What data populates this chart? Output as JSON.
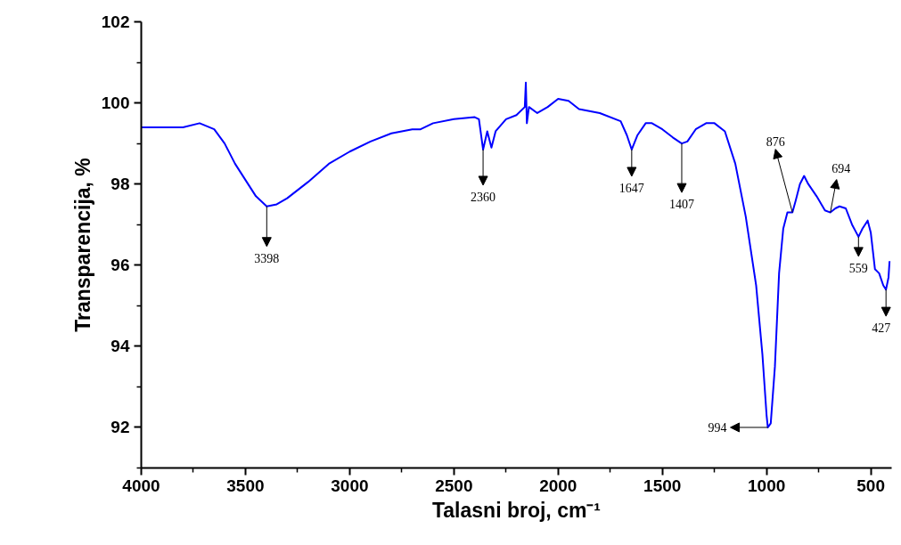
{
  "chart_data": {
    "type": "line",
    "xlabel": "Talasni broj, cm⁻¹",
    "ylabel": "Transparencija, %",
    "xlim": [
      4000,
      400
    ],
    "ylim": [
      91,
      102
    ],
    "xticks": [
      4000,
      {
        "value": 3750,
        "label": null
      },
      3500,
      {
        "value": 3250,
        "label": null
      },
      3000,
      {
        "value": 2750,
        "label": null
      },
      2500,
      {
        "value": 2250,
        "label": null
      },
      2000,
      {
        "value": 1750,
        "label": null
      },
      1500,
      {
        "value": 1250,
        "label": null
      },
      1000,
      {
        "value": 750,
        "label": null
      },
      500
    ],
    "yticks": [
      {
        "value": 91,
        "label": null
      },
      92,
      {
        "value": 93,
        "label": null
      },
      94,
      {
        "value": 95,
        "label": null
      },
      96,
      {
        "value": 97,
        "label": null
      },
      98,
      {
        "value": 99,
        "label": null
      },
      100,
      {
        "value": 101,
        "label": null
      },
      102
    ],
    "grid": false,
    "marker": "none",
    "line_style": "solid",
    "series": [
      {
        "color": "#0000ff",
        "x": [
          4000,
          3800,
          3720,
          3650,
          3600,
          3550,
          3500,
          3450,
          3398,
          3350,
          3300,
          3200,
          3100,
          3000,
          2900,
          2800,
          2700,
          2660,
          2600,
          2500,
          2400,
          2380,
          2360,
          2340,
          2320,
          2300,
          2250,
          2200,
          2160,
          2155,
          2150,
          2140,
          2100,
          2050,
          2000,
          1950,
          1900,
          1800,
          1700,
          1670,
          1647,
          1620,
          1580,
          1550,
          1500,
          1450,
          1407,
          1380,
          1340,
          1290,
          1250,
          1200,
          1150,
          1100,
          1050,
          1020,
          1000,
          994,
          980,
          960,
          940,
          920,
          900,
          876,
          860,
          840,
          820,
          800,
          760,
          720,
          694,
          670,
          650,
          620,
          590,
          559,
          540,
          515,
          500,
          480,
          460,
          440,
          427,
          415,
          410
        ],
        "values": [
          99.4,
          99.4,
          99.5,
          99.35,
          99.0,
          98.5,
          98.1,
          97.7,
          97.45,
          97.5,
          97.65,
          98.05,
          98.5,
          98.8,
          99.05,
          99.25,
          99.35,
          99.35,
          99.5,
          99.6,
          99.65,
          99.6,
          98.85,
          99.3,
          98.9,
          99.3,
          99.6,
          99.7,
          99.9,
          100.5,
          99.5,
          99.9,
          99.75,
          99.9,
          100.1,
          100.05,
          99.85,
          99.75,
          99.55,
          99.2,
          98.85,
          99.2,
          99.5,
          99.5,
          99.35,
          99.15,
          99.0,
          99.05,
          99.35,
          99.5,
          99.5,
          99.3,
          98.5,
          97.2,
          95.5,
          93.8,
          92.3,
          92.0,
          92.1,
          93.5,
          95.8,
          96.9,
          97.3,
          97.3,
          97.6,
          98.0,
          98.2,
          98.0,
          97.7,
          97.35,
          97.3,
          97.4,
          97.45,
          97.4,
          97.0,
          96.7,
          96.9,
          97.1,
          96.8,
          95.9,
          95.8,
          95.5,
          95.4,
          95.7,
          96.1
        ]
      }
    ],
    "annotations": [
      {
        "text": "3398",
        "x": 3398,
        "y": 97.45
      },
      {
        "text": "2360",
        "x": 2360,
        "y": 98.85
      },
      {
        "text": "1647",
        "x": 1647,
        "y": 98.85
      },
      {
        "text": "1407",
        "x": 1407,
        "y": 99.0
      },
      {
        "text": "994",
        "x": 994,
        "y": 92.0
      },
      {
        "text": "876",
        "x": 876,
        "y": 97.3
      },
      {
        "text": "694",
        "x": 694,
        "y": 97.3
      },
      {
        "text": "559",
        "x": 559,
        "y": 96.7
      },
      {
        "text": "427",
        "x": 427,
        "y": 95.4
      }
    ]
  }
}
